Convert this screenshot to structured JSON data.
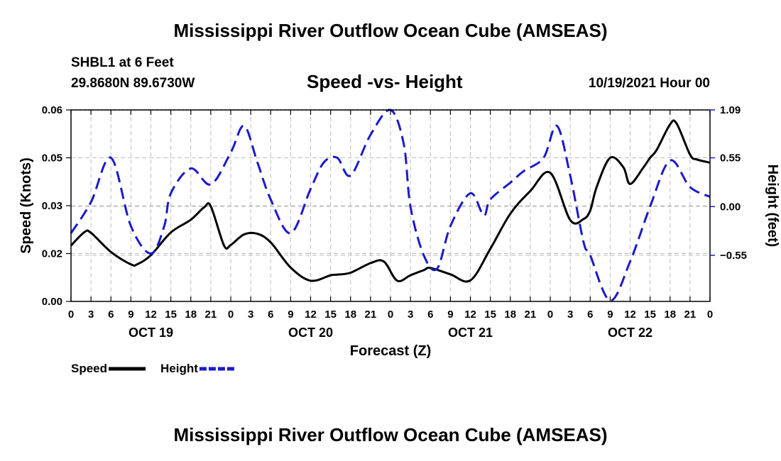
{
  "header": {
    "title": "Mississippi River Outflow Ocean Cube (AMSEAS)",
    "station": "SHBL1 at 6 Feet",
    "latlon": "29.8680N  89.6730W",
    "subtitle": "Speed -vs- Height",
    "datetime": "10/19/2021 Hour 00"
  },
  "footer": {
    "title": "Mississippi River Outflow Ocean Cube (AMSEAS)"
  },
  "chart_data": {
    "type": "line",
    "title": "Speed -vs- Height",
    "xlabel": "Forecast (Z)",
    "ylabel": "Speed (Knots)",
    "y2label": "Height (feet)",
    "x_range": [
      0,
      96
    ],
    "ylim": [
      0,
      0.06
    ],
    "y2lim": [
      -1.07,
      1.09
    ],
    "x_ticks": [
      0,
      3,
      6,
      9,
      12,
      15,
      18,
      21,
      24,
      27,
      30,
      33,
      36,
      39,
      42,
      45,
      48,
      51,
      54,
      57,
      60,
      63,
      66,
      69,
      72,
      75,
      78,
      81,
      84,
      87,
      90,
      93,
      96
    ],
    "x_tick_labels": [
      "0",
      "3",
      "6",
      "9",
      "12",
      "15",
      "18",
      "21",
      "0",
      "3",
      "6",
      "9",
      "12",
      "15",
      "18",
      "21",
      "0",
      "3",
      "6",
      "9",
      "12",
      "15",
      "18",
      "21",
      "0",
      "3",
      "6",
      "9",
      "12",
      "15",
      "18",
      "21",
      "0"
    ],
    "day_labels": [
      {
        "at": 12,
        "label": "OCT 19"
      },
      {
        "at": 36,
        "label": "OCT 20"
      },
      {
        "at": 60,
        "label": "OCT 21"
      },
      {
        "at": 84,
        "label": "OCT 22"
      }
    ],
    "y_ticks": [
      0,
      0.015,
      0.03,
      0.045,
      0.06
    ],
    "y_tick_labels": [
      "0.00",
      "0.02",
      "0.03",
      "0.05",
      "0.06"
    ],
    "y2_ticks": [
      1.09,
      0.55,
      0.0,
      -0.55
    ],
    "y2_tick_labels": [
      "1.09",
      "0.55",
      "0.00",
      "−0.55"
    ],
    "grid": true,
    "legend_position": "bottom-left",
    "series": [
      {
        "name": "Speed",
        "axis": "left",
        "color": "#000000",
        "style": "solid",
        "x": [
          0,
          2,
          3,
          6,
          9,
          10,
          12,
          15,
          18,
          20,
          21,
          23,
          24,
          26,
          28,
          30,
          33,
          36,
          39,
          40,
          42,
          45,
          47,
          49,
          51,
          53,
          54,
          57,
          60,
          63,
          66,
          69,
          72,
          75,
          77,
          78,
          79,
          81,
          83,
          84,
          86,
          87,
          88,
          90,
          91,
          93,
          94,
          96
        ],
        "y": [
          0.0175,
          0.0217,
          0.0215,
          0.0155,
          0.0116,
          0.0117,
          0.0145,
          0.0216,
          0.0256,
          0.0295,
          0.0298,
          0.0175,
          0.0177,
          0.021,
          0.0212,
          0.0185,
          0.0106,
          0.0065,
          0.0082,
          0.0084,
          0.009,
          0.012,
          0.0125,
          0.0065,
          0.0082,
          0.0098,
          0.0105,
          0.0085,
          0.0066,
          0.0165,
          0.0275,
          0.0346,
          0.0403,
          0.0255,
          0.0258,
          0.0285,
          0.036,
          0.045,
          0.042,
          0.0368,
          0.042,
          0.045,
          0.0475,
          0.0555,
          0.0557,
          0.046,
          0.0445,
          0.0435
        ]
      },
      {
        "name": "Height",
        "axis": "right",
        "color": "#1a1acc",
        "style": "dashed",
        "x": [
          0,
          3,
          6,
          9,
          12,
          14,
          15,
          18,
          21,
          24,
          26,
          28,
          30,
          33,
          36,
          38,
          40,
          42,
          45,
          48,
          50,
          51,
          53,
          55,
          57,
          60,
          62,
          63,
          66,
          68,
          71,
          73,
          75,
          77,
          78,
          81,
          84,
          87,
          90,
          93,
          96
        ],
        "y": [
          -0.3,
          0.05,
          0.55,
          -0.22,
          -0.53,
          -0.22,
          0.15,
          0.43,
          0.25,
          0.61,
          0.91,
          0.5,
          0.08,
          -0.3,
          0.2,
          0.5,
          0.55,
          0.35,
          0.81,
          1.09,
          0.7,
          0.0,
          -0.55,
          -0.7,
          -0.22,
          0.15,
          -0.1,
          0.08,
          0.27,
          0.4,
          0.55,
          0.91,
          0.35,
          -0.4,
          -0.55,
          -1.06,
          -0.62,
          0.0,
          0.52,
          0.22,
          0.11
        ]
      }
    ]
  }
}
